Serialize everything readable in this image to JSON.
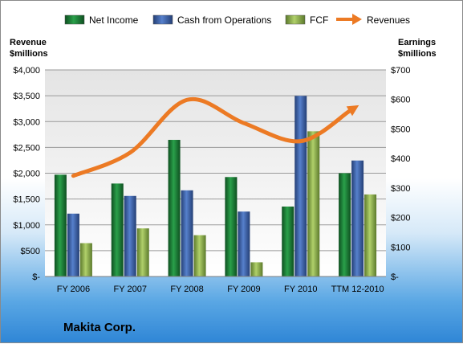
{
  "company": "Makita Corp.",
  "chart_data": {
    "type": "bar",
    "categories": [
      "FY 2006",
      "FY 2007",
      "FY 2008",
      "FY 2009",
      "FY 2010",
      "TTM 12-2010"
    ],
    "left_axis": {
      "title_line1": "Revenue",
      "title_line2": "$millions",
      "ylim": [
        0,
        4000
      ],
      "ticks": [
        {
          "value": 0,
          "label": "$-"
        },
        {
          "value": 500,
          "label": "$500"
        },
        {
          "value": 1000,
          "label": "$1,000"
        },
        {
          "value": 1500,
          "label": "$1,500"
        },
        {
          "value": 2000,
          "label": "$2,000"
        },
        {
          "value": 2500,
          "label": "$2,500"
        },
        {
          "value": 3000,
          "label": "$3,000"
        },
        {
          "value": 3500,
          "label": "$3,500"
        },
        {
          "value": 4000,
          "label": "$4,000"
        }
      ]
    },
    "right_axis": {
      "title_line1": "Earnings",
      "title_line2": "$millions",
      "ylim": [
        0,
        700
      ],
      "ticks": [
        {
          "value": 0,
          "label": "$-"
        },
        {
          "value": 100,
          "label": "$100"
        },
        {
          "value": 200,
          "label": "$200"
        },
        {
          "value": 300,
          "label": "$300"
        },
        {
          "value": 400,
          "label": "$400"
        },
        {
          "value": 500,
          "label": "$500"
        },
        {
          "value": 600,
          "label": "$600"
        },
        {
          "value": 700,
          "label": "$700"
        }
      ]
    },
    "series": [
      {
        "name": "Net Income",
        "kind": "bar",
        "axis": "right",
        "color": "#1a7a34",
        "values": [
          345,
          315,
          463,
          337,
          237,
          350
        ]
      },
      {
        "name": "Cash from Operations",
        "kind": "bar",
        "axis": "right",
        "color": "#3d64a8",
        "values": [
          213,
          273,
          292,
          220,
          612,
          393
        ]
      },
      {
        "name": "FCF",
        "kind": "bar",
        "axis": "right",
        "color": "#8ab04a",
        "values": [
          113,
          163,
          140,
          48,
          492,
          278
        ]
      },
      {
        "name": "Revenues",
        "kind": "line",
        "axis": "left",
        "color": "#ec7a24",
        "values": [
          1950,
          2400,
          3420,
          2970,
          2620,
          3300
        ]
      }
    ],
    "grid": true,
    "legend": "top"
  }
}
